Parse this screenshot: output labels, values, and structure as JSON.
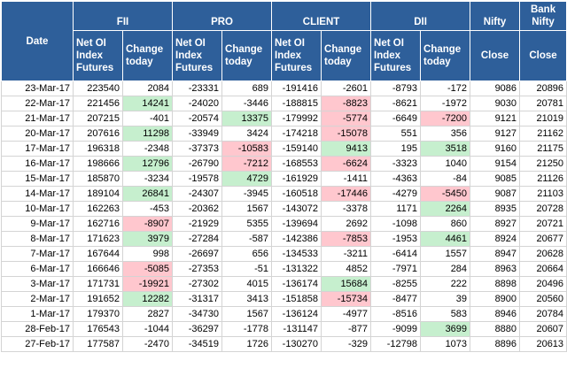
{
  "headers": {
    "date": "Date",
    "groups": [
      "FII",
      "PRO",
      "CLIENT",
      "DII",
      "Nifty"
    ],
    "bank_nifty": "Bank Nifty",
    "sub_oi": "Net OI Index Futures",
    "sub_change": "Change today",
    "close": "Close"
  },
  "rows": [
    {
      "date": "23-Mar-17",
      "fii_oi": "223540",
      "fii_chg": "2084",
      "pro_oi": "-23331",
      "pro_chg": "689",
      "client_oi": "-191416",
      "client_chg": "-2601",
      "dii_oi": "-8793",
      "dii_chg": "-172",
      "nifty": "9086",
      "bank": "20896"
    },
    {
      "date": "22-Mar-17",
      "fii_oi": "221456",
      "fii_chg": "14241",
      "pro_oi": "-24020",
      "pro_chg": "-3446",
      "client_oi": "-188815",
      "client_chg": "-8823",
      "dii_oi": "-8621",
      "dii_chg": "-1972",
      "nifty": "9030",
      "bank": "20781"
    },
    {
      "date": "21-Mar-17",
      "fii_oi": "207215",
      "fii_chg": "-401",
      "pro_oi": "-20574",
      "pro_chg": "13375",
      "client_oi": "-179992",
      "client_chg": "-5774",
      "dii_oi": "-6649",
      "dii_chg": "-7200",
      "nifty": "9121",
      "bank": "21019"
    },
    {
      "date": "20-Mar-17",
      "fii_oi": "207616",
      "fii_chg": "11298",
      "pro_oi": "-33949",
      "pro_chg": "3424",
      "client_oi": "-174218",
      "client_chg": "-15078",
      "dii_oi": "551",
      "dii_chg": "356",
      "nifty": "9127",
      "bank": "21162"
    },
    {
      "date": "17-Mar-17",
      "fii_oi": "196318",
      "fii_chg": "-2348",
      "pro_oi": "-37373",
      "pro_chg": "-10583",
      "client_oi": "-159140",
      "client_chg": "9413",
      "dii_oi": "195",
      "dii_chg": "3518",
      "nifty": "9160",
      "bank": "21175"
    },
    {
      "date": "16-Mar-17",
      "fii_oi": "198666",
      "fii_chg": "12796",
      "pro_oi": "-26790",
      "pro_chg": "-7212",
      "client_oi": "-168553",
      "client_chg": "-6624",
      "dii_oi": "-3323",
      "dii_chg": "1040",
      "nifty": "9154",
      "bank": "21250"
    },
    {
      "date": "15-Mar-17",
      "fii_oi": "185870",
      "fii_chg": "-3234",
      "pro_oi": "-19578",
      "pro_chg": "4729",
      "client_oi": "-161929",
      "client_chg": "-1411",
      "dii_oi": "-4363",
      "dii_chg": "-84",
      "nifty": "9085",
      "bank": "21126"
    },
    {
      "date": "14-Mar-17",
      "fii_oi": "189104",
      "fii_chg": "26841",
      "pro_oi": "-24307",
      "pro_chg": "-3945",
      "client_oi": "-160518",
      "client_chg": "-17446",
      "dii_oi": "-4279",
      "dii_chg": "-5450",
      "nifty": "9087",
      "bank": "21103"
    },
    {
      "date": "10-Mar-17",
      "fii_oi": "162263",
      "fii_chg": "-453",
      "pro_oi": "-20362",
      "pro_chg": "1567",
      "client_oi": "-143072",
      "client_chg": "-3378",
      "dii_oi": "1171",
      "dii_chg": "2264",
      "nifty": "8935",
      "bank": "20728"
    },
    {
      "date": "9-Mar-17",
      "fii_oi": "162716",
      "fii_chg": "-8907",
      "pro_oi": "-21929",
      "pro_chg": "5355",
      "client_oi": "-139694",
      "client_chg": "2692",
      "dii_oi": "-1098",
      "dii_chg": "860",
      "nifty": "8927",
      "bank": "20721"
    },
    {
      "date": "8-Mar-17",
      "fii_oi": "171623",
      "fii_chg": "3979",
      "pro_oi": "-27284",
      "pro_chg": "-587",
      "client_oi": "-142386",
      "client_chg": "-7853",
      "dii_oi": "-1953",
      "dii_chg": "4461",
      "nifty": "8924",
      "bank": "20677"
    },
    {
      "date": "7-Mar-17",
      "fii_oi": "167644",
      "fii_chg": "998",
      "pro_oi": "-26697",
      "pro_chg": "656",
      "client_oi": "-134533",
      "client_chg": "-3211",
      "dii_oi": "-6414",
      "dii_chg": "1557",
      "nifty": "8947",
      "bank": "20628"
    },
    {
      "date": "6-Mar-17",
      "fii_oi": "166646",
      "fii_chg": "-5085",
      "pro_oi": "-27353",
      "pro_chg": "-51",
      "client_oi": "-131322",
      "client_chg": "4852",
      "dii_oi": "-7971",
      "dii_chg": "284",
      "nifty": "8963",
      "bank": "20664"
    },
    {
      "date": "3-Mar-17",
      "fii_oi": "171731",
      "fii_chg": "-19921",
      "pro_oi": "-27302",
      "pro_chg": "4015",
      "client_oi": "-136174",
      "client_chg": "15684",
      "dii_oi": "-8255",
      "dii_chg": "222",
      "nifty": "8898",
      "bank": "20496"
    },
    {
      "date": "2-Mar-17",
      "fii_oi": "191652",
      "fii_chg": "12282",
      "pro_oi": "-31317",
      "pro_chg": "3413",
      "client_oi": "-151858",
      "client_chg": "-15734",
      "dii_oi": "-8477",
      "dii_chg": "39",
      "nifty": "8900",
      "bank": "20560"
    },
    {
      "date": "1-Mar-17",
      "fii_oi": "179370",
      "fii_chg": "2827",
      "pro_oi": "-34730",
      "pro_chg": "1567",
      "client_oi": "-136124",
      "client_chg": "-4977",
      "dii_oi": "-8516",
      "dii_chg": "583",
      "nifty": "8946",
      "bank": "20784"
    },
    {
      "date": "28-Feb-17",
      "fii_oi": "176543",
      "fii_chg": "-1044",
      "pro_oi": "-36297",
      "pro_chg": "-1778",
      "client_oi": "-131147",
      "client_chg": "-877",
      "dii_oi": "-9099",
      "dii_chg": "3699",
      "nifty": "8880",
      "bank": "20607"
    },
    {
      "date": "27-Feb-17",
      "fii_oi": "177587",
      "fii_chg": "-2470",
      "pro_oi": "-34519",
      "pro_chg": "1726",
      "client_oi": "-130270",
      "client_chg": "-329",
      "dii_oi": "-12798",
      "dii_chg": "1073",
      "nifty": "8896",
      "bank": "20613"
    }
  ],
  "highlights": {
    "fii_chg": [
      1,
      3,
      5,
      7,
      9,
      10,
      12,
      13,
      14
    ],
    "pro_chg": [
      2,
      4,
      5,
      6
    ],
    "client_chg": [
      1,
      2,
      3,
      4,
      5,
      7,
      10,
      13,
      14
    ],
    "dii_chg": [
      2,
      4,
      7,
      8,
      10,
      16
    ]
  },
  "colors": {
    "header_bg": "#2e5f9a",
    "positive_highlight": "#c6efce",
    "negative_highlight": "#ffc7ce"
  }
}
